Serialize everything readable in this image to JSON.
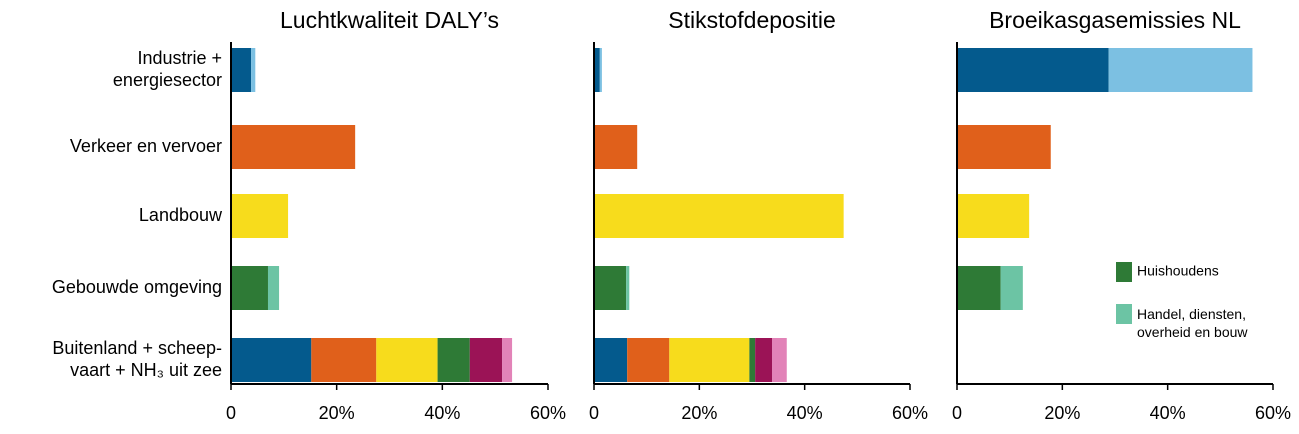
{
  "chart_data": [
    {
      "type": "hbar-stacked",
      "title": "Luchtkwaliteit DALY’s",
      "categories": [
        "Industrie +\nenergiesector",
        "Verkeer en vervoer",
        "Landbouw",
        "Gebouwde omgeving",
        "Buitenland + scheep-\nvaart + NH₃ uit zee"
      ],
      "xlim": [
        0,
        60
      ],
      "xticks": [
        0,
        {
          "value": 20,
          "label": "20%"
        },
        {
          "value": 40,
          "label": "40%"
        },
        {
          "value": 60,
          "label": "60%"
        }
      ],
      "series": [
        {
          "color": "#045a8d",
          "values": [
            3.8,
            null,
            null,
            null,
            15.2
          ]
        },
        {
          "color": "#7cc0e2",
          "values": [
            0.8,
            null,
            null,
            null,
            null
          ]
        },
        {
          "color": "#e0601b",
          "values": [
            null,
            23.5,
            null,
            null,
            12.3
          ]
        },
        {
          "color": "#f7dc1c",
          "values": [
            null,
            null,
            10.8,
            null,
            11.6
          ]
        },
        {
          "color": "#2e7a36",
          "values": [
            null,
            null,
            null,
            7.0,
            6.1
          ]
        },
        {
          "color": "#6cc4a4",
          "values": [
            null,
            null,
            null,
            2.1,
            null
          ]
        },
        {
          "color": "#9b1356",
          "values": [
            null,
            null,
            null,
            null,
            6.1
          ]
        },
        {
          "color": "#e283b8",
          "values": [
            null,
            null,
            null,
            null,
            1.9
          ]
        }
      ]
    },
    {
      "type": "hbar-stacked",
      "title": "Stikstofdepositie",
      "xlim": [
        0,
        60
      ],
      "xticks": [
        0,
        {
          "value": 20,
          "label": "20%"
        },
        {
          "value": 40,
          "label": "40%"
        },
        {
          "value": 60,
          "label": "60%"
        }
      ],
      "series": [
        {
          "color": "#045a8d",
          "values": [
            1.1,
            null,
            null,
            null,
            6.3
          ]
        },
        {
          "color": "#7cc0e2",
          "values": [
            0.4,
            null,
            null,
            null,
            null
          ]
        },
        {
          "color": "#e0601b",
          "values": [
            null,
            8.2,
            null,
            null,
            8.0
          ]
        },
        {
          "color": "#f7dc1c",
          "values": [
            null,
            null,
            47.4,
            null,
            15.2
          ]
        },
        {
          "color": "#2e7a36",
          "values": [
            null,
            null,
            null,
            6.1,
            1.1
          ]
        },
        {
          "color": "#6cc4a4",
          "values": [
            null,
            null,
            null,
            0.6,
            null
          ]
        },
        {
          "color": "#9b1356",
          "values": [
            null,
            null,
            null,
            null,
            3.2
          ]
        },
        {
          "color": "#e283b8",
          "values": [
            null,
            null,
            null,
            null,
            2.8
          ]
        }
      ]
    },
    {
      "type": "hbar-stacked",
      "title": "Broeikasgasemissies NL",
      "xlim": [
        0,
        60
      ],
      "xticks": [
        0,
        {
          "value": 20,
          "label": "20%"
        },
        {
          "value": 40,
          "label": "40%"
        },
        {
          "value": 60,
          "label": "60%"
        }
      ],
      "series": [
        {
          "color": "#045a8d",
          "values": [
            28.8,
            null,
            null,
            null,
            null
          ]
        },
        {
          "color": "#7cc0e2",
          "values": [
            27.3,
            null,
            null,
            null,
            null
          ]
        },
        {
          "color": "#e0601b",
          "values": [
            null,
            17.8,
            null,
            null,
            null
          ]
        },
        {
          "color": "#f7dc1c",
          "values": [
            null,
            null,
            13.7,
            null,
            null
          ]
        },
        {
          "name": "Huishoudens",
          "color": "#2e7a36",
          "values": [
            null,
            null,
            null,
            8.3,
            null
          ]
        },
        {
          "name": "Handel, diensten,\noverheid en bouw",
          "color": "#6cc4a4",
          "values": [
            null,
            null,
            null,
            4.2,
            null
          ]
        }
      ]
    }
  ]
}
